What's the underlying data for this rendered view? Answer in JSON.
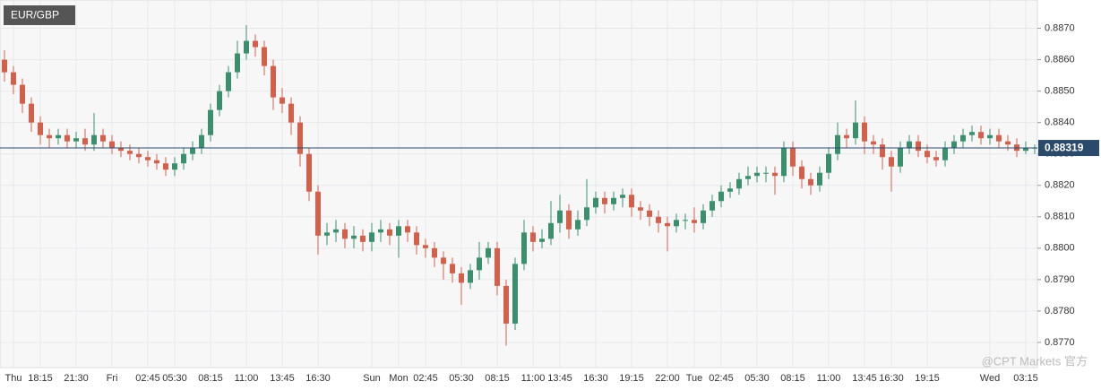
{
  "chart_data": {
    "type": "candlestick",
    "title": "EUR/GBP",
    "watermark": "@CPT Markets 官方",
    "categories": [
      null,
      "Thu",
      null,
      null,
      "18:15",
      null,
      null,
      null,
      "21:30",
      null,
      null,
      null,
      "Fri",
      null,
      null,
      null,
      "02:45",
      null,
      null,
      "05:30",
      null,
      null,
      null,
      "08:15",
      null,
      null,
      null,
      "11:00",
      null,
      null,
      null,
      "13:45",
      null,
      null,
      null,
      "16:30",
      null,
      null,
      null,
      null,
      null,
      "Sun",
      null,
      null,
      "Mon",
      null,
      null,
      "02:45",
      null,
      null,
      null,
      "05:30",
      null,
      null,
      null,
      "08:15",
      null,
      null,
      null,
      "11:00",
      null,
      null,
      "13:45",
      null,
      null,
      null,
      "16:30",
      null,
      null,
      null,
      "19:15",
      null,
      null,
      null,
      "22:00",
      null,
      null,
      "Tue",
      null,
      null,
      "02:45",
      null,
      null,
      null,
      "05:30",
      null,
      null,
      null,
      "08:15",
      null,
      null,
      null,
      "11:00",
      null,
      null,
      null,
      "13:45",
      null,
      null,
      "16:30",
      null,
      null,
      null,
      "19:15",
      null,
      null,
      null,
      null,
      null,
      null,
      "Wed",
      null,
      null,
      null,
      "03:15",
      null
    ],
    "open": [
      0.886,
      0.8856,
      0.8852,
      0.8846,
      0.884,
      0.8836,
      0.8835,
      0.8836,
      0.8834,
      0.8835,
      0.8833,
      0.8836,
      0.8834,
      0.8832,
      0.8831,
      0.883,
      0.8829,
      0.8828,
      0.8827,
      0.8825,
      0.8827,
      0.883,
      0.8832,
      0.8836,
      0.8844,
      0.885,
      0.8856,
      0.8862,
      0.8866,
      0.8864,
      0.8858,
      0.8848,
      0.8846,
      0.884,
      0.883,
      0.8818,
      0.8804,
      0.8805,
      0.8806,
      0.8803,
      0.8804,
      0.8802,
      0.8805,
      0.8806,
      0.8804,
      0.8807,
      0.8805,
      0.8801,
      0.88,
      0.8797,
      0.8795,
      0.8792,
      0.8789,
      0.8793,
      0.8797,
      0.88,
      0.8788,
      0.8776,
      0.8795,
      0.8805,
      0.8802,
      0.8803,
      0.8808,
      0.8812,
      0.8806,
      0.8809,
      0.8813,
      0.8816,
      0.8814,
      0.8816,
      0.8817,
      0.8813,
      0.8812,
      0.881,
      0.8808,
      0.8807,
      0.8809,
      0.8809,
      0.8808,
      0.8812,
      0.8815,
      0.8818,
      0.8819,
      0.8822,
      0.8823,
      0.8824,
      0.8824,
      0.8823,
      0.8832,
      0.8826,
      0.8822,
      0.882,
      0.8824,
      0.883,
      0.8836,
      0.8835,
      0.884,
      0.8834,
      0.8833,
      0.8829,
      0.8826,
      0.8832,
      0.8834,
      0.8831,
      0.8829,
      0.8828,
      0.8832,
      0.8834,
      0.8836,
      0.8837,
      0.8835,
      0.8836,
      0.8834,
      0.8833,
      0.8831,
      0.8832
    ],
    "high": [
      0.8863,
      0.8858,
      0.8854,
      0.8848,
      0.8842,
      0.8838,
      0.8838,
      0.8838,
      0.8837,
      0.8838,
      0.8843,
      0.8838,
      0.8836,
      0.8834,
      0.8833,
      0.8832,
      0.8831,
      0.883,
      0.8829,
      0.8829,
      0.8832,
      0.8834,
      0.8838,
      0.8846,
      0.8852,
      0.8858,
      0.8866,
      0.8871,
      0.8868,
      0.8866,
      0.886,
      0.8851,
      0.8848,
      0.8842,
      0.8832,
      0.882,
      0.8808,
      0.8809,
      0.8808,
      0.8807,
      0.8806,
      0.8808,
      0.8809,
      0.8808,
      0.8809,
      0.8809,
      0.8807,
      0.8803,
      0.8802,
      0.8799,
      0.8797,
      0.8794,
      0.8795,
      0.8802,
      0.8802,
      0.8802,
      0.879,
      0.8797,
      0.8809,
      0.8807,
      0.8806,
      0.8815,
      0.8817,
      0.8814,
      0.8812,
      0.8822,
      0.8818,
      0.8818,
      0.8818,
      0.8819,
      0.8819,
      0.8815,
      0.8814,
      0.8812,
      0.881,
      0.8811,
      0.8811,
      0.8813,
      0.8814,
      0.8817,
      0.882,
      0.8821,
      0.8824,
      0.8826,
      0.8826,
      0.8826,
      0.8826,
      0.8834,
      0.8834,
      0.8828,
      0.8824,
      0.8826,
      0.8832,
      0.884,
      0.8838,
      0.8847,
      0.8842,
      0.8836,
      0.8835,
      0.8831,
      0.8834,
      0.8836,
      0.8836,
      0.8833,
      0.8831,
      0.8834,
      0.8836,
      0.8838,
      0.8839,
      0.8839,
      0.8838,
      0.8838,
      0.8836,
      0.8835,
      0.8834,
      0.8833
    ],
    "low": [
      0.8853,
      0.8849,
      0.8843,
      0.8837,
      0.8833,
      0.8832,
      0.8833,
      0.8832,
      0.8832,
      0.8831,
      0.8831,
      0.8832,
      0.883,
      0.8829,
      0.8828,
      0.8827,
      0.8826,
      0.8825,
      0.8823,
      0.8823,
      0.8825,
      0.8828,
      0.883,
      0.8834,
      0.8842,
      0.8848,
      0.8854,
      0.886,
      0.8861,
      0.8855,
      0.8844,
      0.8843,
      0.8836,
      0.8826,
      0.8815,
      0.8798,
      0.8801,
      0.8802,
      0.88,
      0.88,
      0.8799,
      0.8799,
      0.8802,
      0.8801,
      0.8797,
      0.8802,
      0.8798,
      0.8797,
      0.8794,
      0.879,
      0.8789,
      0.8782,
      0.8787,
      0.879,
      0.8795,
      0.8785,
      0.8769,
      0.8774,
      0.8793,
      0.8799,
      0.88,
      0.8801,
      0.8805,
      0.8803,
      0.8804,
      0.8807,
      0.8811,
      0.8811,
      0.8812,
      0.8813,
      0.881,
      0.8809,
      0.8807,
      0.8805,
      0.8799,
      0.8805,
      0.8806,
      0.8805,
      0.8806,
      0.881,
      0.8813,
      0.8816,
      0.8817,
      0.882,
      0.8821,
      0.8821,
      0.8817,
      0.8821,
      0.8823,
      0.8819,
      0.8817,
      0.8818,
      0.8822,
      0.8828,
      0.8832,
      0.8833,
      0.883,
      0.883,
      0.8825,
      0.8818,
      0.8824,
      0.883,
      0.8829,
      0.8827,
      0.8826,
      0.8826,
      0.883,
      0.8832,
      0.8834,
      0.8833,
      0.8833,
      0.8832,
      0.8831,
      0.8829,
      0.883,
      0.883
    ],
    "close": [
      0.8856,
      0.8852,
      0.8846,
      0.884,
      0.8836,
      0.8835,
      0.8836,
      0.8834,
      0.8835,
      0.8833,
      0.8836,
      0.8834,
      0.8832,
      0.8831,
      0.883,
      0.8829,
      0.8828,
      0.8827,
      0.8825,
      0.8827,
      0.883,
      0.8832,
      0.8836,
      0.8844,
      0.885,
      0.8856,
      0.8862,
      0.8866,
      0.8864,
      0.8858,
      0.8848,
      0.8846,
      0.884,
      0.883,
      0.8818,
      0.8804,
      0.8805,
      0.8806,
      0.8803,
      0.8804,
      0.8802,
      0.8805,
      0.8806,
      0.8804,
      0.8807,
      0.8805,
      0.8801,
      0.88,
      0.8797,
      0.8795,
      0.8792,
      0.8789,
      0.8793,
      0.8797,
      0.88,
      0.8788,
      0.8776,
      0.8795,
      0.8805,
      0.8802,
      0.8803,
      0.8808,
      0.8812,
      0.8806,
      0.8809,
      0.8813,
      0.8816,
      0.8814,
      0.8816,
      0.8817,
      0.8813,
      0.8812,
      0.881,
      0.8808,
      0.8807,
      0.8809,
      0.8809,
      0.8808,
      0.8812,
      0.8815,
      0.8818,
      0.8819,
      0.8822,
      0.8823,
      0.8824,
      0.8824,
      0.8823,
      0.8832,
      0.8826,
      0.8822,
      0.882,
      0.8824,
      0.883,
      0.8836,
      0.8835,
      0.884,
      0.8834,
      0.8833,
      0.8829,
      0.8826,
      0.8832,
      0.8834,
      0.8831,
      0.8829,
      0.8828,
      0.8832,
      0.8834,
      0.8836,
      0.8837,
      0.8835,
      0.8836,
      0.8834,
      0.8833,
      0.8831,
      0.8832,
      0.8832
    ],
    "up_color": "#3b8f6d",
    "down_color": "#d2604b",
    "last_price_color": "#2b4a6b",
    "last_price": 0.88319,
    "ylim": [
      0.8762,
      0.8879
    ],
    "yticks": [
      {
        "value": 0.877,
        "label": "0.8770"
      },
      {
        "value": 0.878,
        "label": "0.8780"
      },
      {
        "value": 0.879,
        "label": "0.8790"
      },
      {
        "value": 0.88,
        "label": "0.8800"
      },
      {
        "value": 0.881,
        "label": "0.8810"
      },
      {
        "value": 0.882,
        "label": "0.8820"
      },
      {
        "value": 0.883,
        "label": "0.8830"
      },
      {
        "value": 0.884,
        "label": "0.8840"
      },
      {
        "value": 0.885,
        "label": "0.8850"
      },
      {
        "value": 0.886,
        "label": "0.8860"
      },
      {
        "value": 0.887,
        "label": "0.8870"
      }
    ],
    "grid": true
  }
}
